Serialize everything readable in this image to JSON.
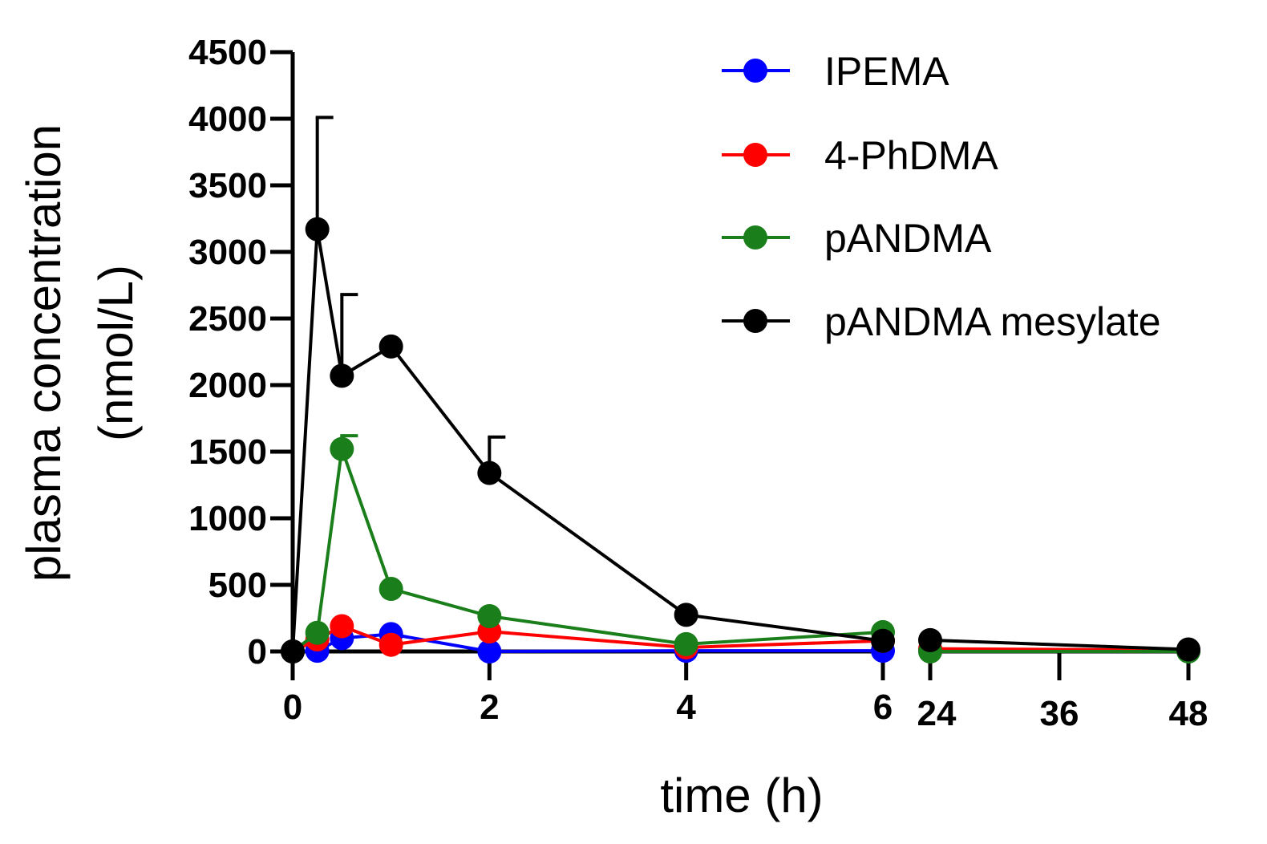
{
  "chart_data": {
    "type": "line",
    "title": "",
    "xlabel": "time (h)",
    "ylabel": [
      "plasma concentration",
      "(nmol/L)"
    ],
    "ylim": [
      0,
      4500
    ],
    "yticks": [
      0,
      500,
      1000,
      1500,
      2000,
      2500,
      3000,
      3500,
      4000,
      4500
    ],
    "x_segments": [
      {
        "xlim": [
          0,
          6
        ],
        "ticks": [
          0,
          2,
          4,
          6
        ]
      },
      {
        "xlim": [
          24,
          48
        ],
        "ticks": [
          24,
          36,
          48
        ]
      }
    ],
    "legend_position": "top-right",
    "series": [
      {
        "name": "IPEMA",
        "color": "#0000ff",
        "x": [
          0,
          0.25,
          0.5,
          1,
          2,
          4,
          6,
          24,
          48
        ],
        "y": [
          0,
          5,
          100,
          130,
          0,
          5,
          5,
          5,
          5
        ],
        "error": [
          null,
          null,
          null,
          null,
          null,
          null,
          null,
          null,
          null
        ]
      },
      {
        "name": "4-PhDMA",
        "color": "#ff0000",
        "x": [
          0,
          0.25,
          0.5,
          1,
          2,
          4,
          6,
          24,
          48
        ],
        "y": [
          0,
          90,
          190,
          50,
          150,
          30,
          80,
          20,
          10
        ],
        "error": [
          null,
          null,
          null,
          null,
          null,
          null,
          null,
          null,
          null
        ]
      },
      {
        "name": "pANDMA",
        "color": "#1a7f1a",
        "x": [
          0,
          0.25,
          0.5,
          1,
          2,
          4,
          6,
          24,
          48
        ],
        "y": [
          0,
          140,
          1520,
          470,
          265,
          55,
          145,
          0,
          0
        ],
        "error": [
          null,
          null,
          100,
          null,
          null,
          null,
          null,
          null,
          null
        ]
      },
      {
        "name": "pANDMA mesylate",
        "color": "#000000",
        "x": [
          0,
          0.25,
          0.5,
          1,
          2,
          4,
          6,
          24,
          48
        ],
        "y": [
          0,
          3170,
          2070,
          2290,
          1340,
          275,
          80,
          85,
          15
        ],
        "error": [
          null,
          840,
          610,
          null,
          270,
          null,
          null,
          null,
          null
        ]
      }
    ]
  }
}
